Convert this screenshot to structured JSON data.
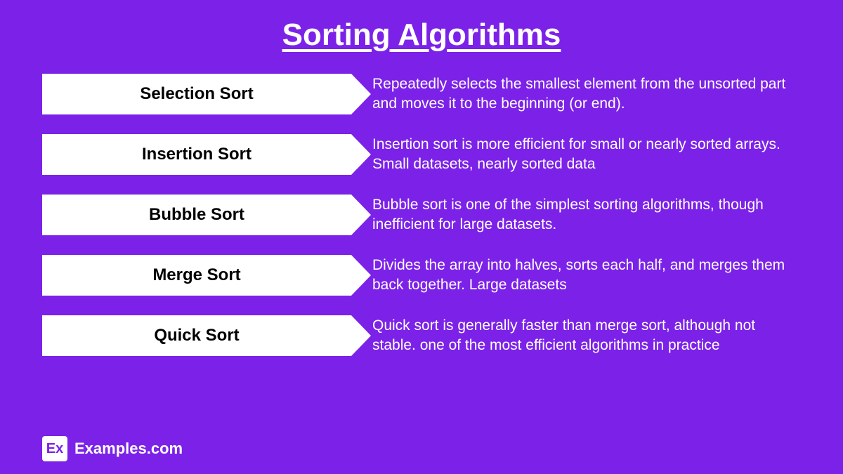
{
  "title": "Sorting Algorithms",
  "background_color": "#7c22e8",
  "title_color": "#ffffff",
  "title_fontsize": 44,
  "arrow_bg": "#ffffff",
  "arrow_label_color": "#000000",
  "arrow_label_fontsize": 24,
  "desc_color": "#ffffff",
  "desc_fontsize": 21,
  "items": [
    {
      "label": "Selection Sort",
      "desc": "Repeatedly selects the smallest element from the unsorted part and moves it to the beginning (or end)."
    },
    {
      "label": "Insertion Sort",
      "desc": "Insertion sort is more efficient for small or nearly sorted arrays. Small datasets, nearly sorted data"
    },
    {
      "label": "Bubble Sort",
      "desc": "Bubble sort is one of the simplest sorting algorithms, though inefficient for large datasets."
    },
    {
      "label": "Merge Sort",
      "desc": "Divides the array into halves, sorts each half, and merges them back together. Large datasets"
    },
    {
      "label": "Quick Sort",
      "desc": "Quick sort is generally faster than merge sort, although not stable. one of the most efficient algorithms in practice"
    }
  ],
  "footer": {
    "logo_text": "Ex",
    "logo_color": "#7c22e8",
    "site": "Examples.com",
    "site_fontsize": 22,
    "site_color": "#ffffff"
  }
}
